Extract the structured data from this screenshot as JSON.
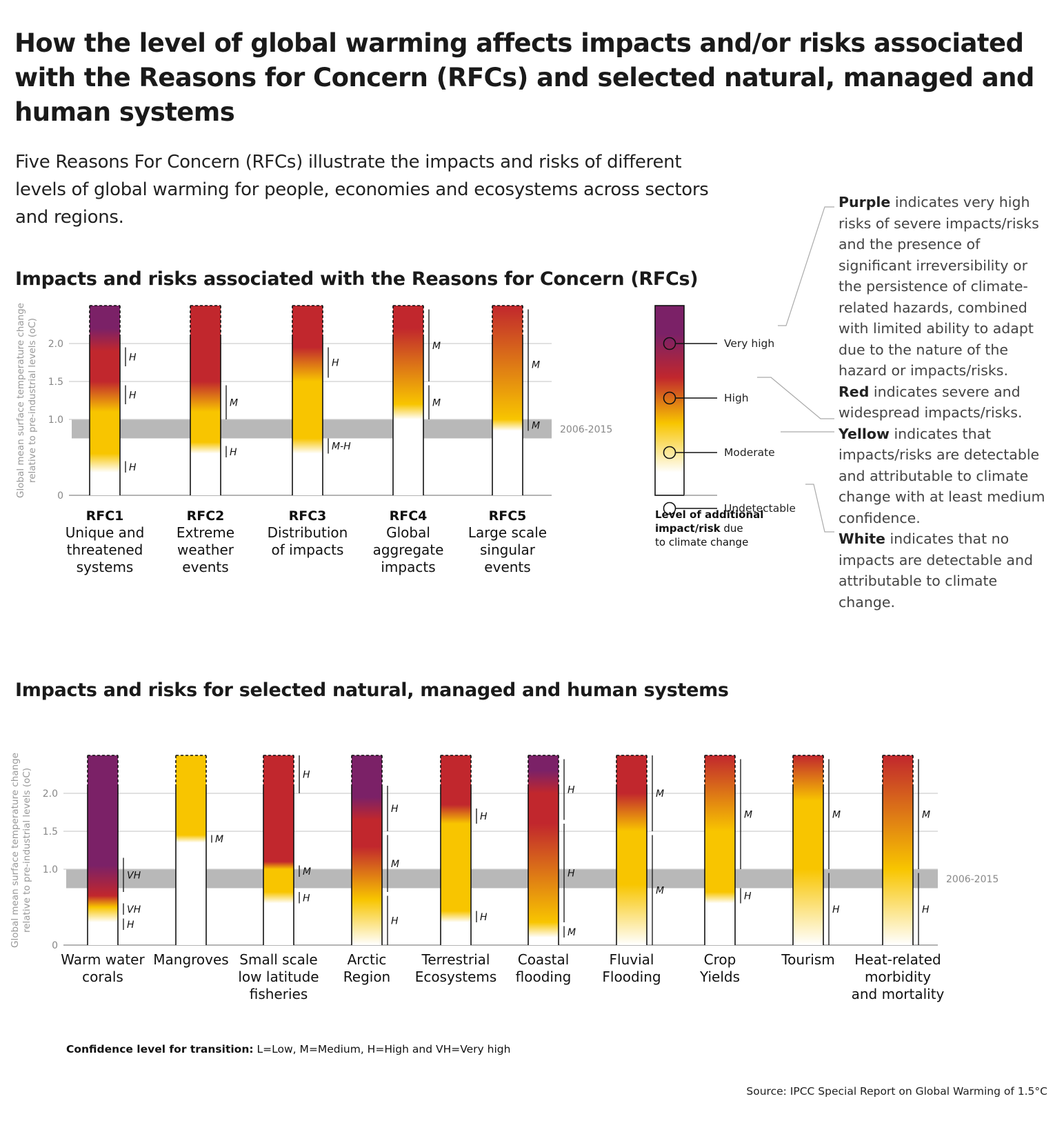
{
  "title": "How the level of global warming affects impacts and/or risks associated with the Reasons for Concern (RFCs) and selected natural, managed and human systems",
  "intro": "Five Reasons For Concern (RFCs) illustrate the impacts and risks of different levels of global warming for people, economies and ecosystems across sectors and regions.",
  "sections": {
    "rfc_heading": "Impacts and risks associated with the Reasons for Concern (RFCs)",
    "systems_heading": "Impacts and risks for selected natural, managed and human systems"
  },
  "legend": {
    "levels": [
      "Very high",
      "High",
      "Moderate",
      "Undetectable"
    ],
    "title": [
      "Level of additional",
      "impact/risk",
      "due",
      "to climate change"
    ],
    "colors": {
      "very_high": "#7b2167",
      "high": "#c1272d",
      "moderate": "#f8c500",
      "undetectable": "#ffffff"
    }
  },
  "notes": [
    {
      "key": "Purple",
      "text": " indicates very high risks of severe impacts/risks and the presence of significant irreversibility or the persistence of climate-related hazards, combined with limited ability to adapt due to the nature of the hazard or impacts/risks."
    },
    {
      "key": "Red",
      "text": " indicates severe and widespread impacts/risks."
    },
    {
      "key": "Yellow",
      "text": " indicates that impacts/risks are detectable and attributable to climate change with at least medium confidence."
    },
    {
      "key": "White",
      "text": " indicates that no impacts are detectable and attributable to climate change."
    }
  ],
  "confidence_note": {
    "label": "Confidence level  for transition:",
    "text": " L=Low, M=Medium, H=High and VH=Very high"
  },
  "source": "Source: IPCC Special Report on Global Warming of 1.5°C",
  "chart_data": [
    {
      "type": "heatmap",
      "title": "Impacts and risks associated with the Reasons for Concern (RFCs)",
      "ylabel": [
        "Global mean surface temperature change",
        "relative to pre-industrial levels (oC)"
      ],
      "yticks": [
        0,
        1.0,
        1.5,
        2.0
      ],
      "ylim": [
        0,
        2.5
      ],
      "reference_band": {
        "label": "2006-2015",
        "range": [
          0.75,
          1.0
        ]
      },
      "categories": [
        {
          "code": "RFC1",
          "label": [
            "Unique and",
            "threatened",
            "systems"
          ],
          "stops": [
            [
              0.3,
              "u"
            ],
            [
              0.55,
              "m"
            ],
            [
              1.1,
              "m"
            ],
            [
              1.5,
              "h"
            ],
            [
              1.9,
              "h"
            ],
            [
              2.2,
              "v"
            ]
          ],
          "confidence": [
            {
              "range": [
                0.3,
                0.45
              ],
              "text": "H"
            },
            {
              "range": [
                1.2,
                1.45
              ],
              "text": "H"
            },
            {
              "range": [
                1.7,
                1.95
              ],
              "text": "H"
            }
          ]
        },
        {
          "code": "RFC2",
          "label": [
            "Extreme",
            "weather",
            "events"
          ],
          "stops": [
            [
              0.55,
              "u"
            ],
            [
              0.7,
              "m"
            ],
            [
              1.1,
              "m"
            ],
            [
              1.5,
              "h"
            ]
          ],
          "confidence": [
            {
              "range": [
                0.5,
                0.65
              ],
              "text": "H"
            },
            {
              "range": [
                1.0,
                1.45
              ],
              "text": "M"
            }
          ]
        },
        {
          "code": "RFC3",
          "label": [
            "Distribution",
            "of impacts"
          ],
          "stops": [
            [
              0.55,
              "u"
            ],
            [
              0.75,
              "m"
            ],
            [
              1.5,
              "m"
            ],
            [
              1.95,
              "h"
            ]
          ],
          "confidence": [
            {
              "range": [
                0.55,
                0.75
              ],
              "text": "M-H"
            },
            {
              "range": [
                1.55,
                1.95
              ],
              "text": "H"
            }
          ]
        },
        {
          "code": "RFC4",
          "label": [
            "Global",
            "aggregate",
            "impacts"
          ],
          "stops": [
            [
              1.0,
              "u"
            ],
            [
              1.2,
              "m"
            ],
            [
              2.2,
              "h"
            ]
          ],
          "confidence": [
            {
              "range": [
                1.0,
                1.45
              ],
              "text": "M"
            },
            {
              "range": [
                1.5,
                2.45
              ],
              "text": "M"
            }
          ]
        },
        {
          "code": "RFC5",
          "label": [
            "Large scale",
            "singular",
            "events"
          ],
          "stops": [
            [
              0.85,
              "u"
            ],
            [
              1.0,
              "m"
            ],
            [
              2.5,
              "h"
            ]
          ],
          "confidence": [
            {
              "range": [
                0.85,
                1.0
              ],
              "text": "M"
            },
            {
              "range": [
                1.0,
                2.45
              ],
              "text": "M"
            }
          ]
        }
      ]
    },
    {
      "type": "heatmap",
      "title": "Impacts and risks for selected natural, managed and human systems",
      "ylabel": [
        "Global mean surface temperature change",
        "relative to pre-industrial levels (oC)"
      ],
      "yticks": [
        0,
        1.0,
        1.5,
        2.0
      ],
      "ylim": [
        0,
        2.5
      ],
      "reference_band": {
        "label": "2006-2015",
        "range": [
          0.75,
          1.0
        ]
      },
      "categories": [
        {
          "label": [
            "Warm water",
            "corals"
          ],
          "stops": [
            [
              0.3,
              "u"
            ],
            [
              0.5,
              "m"
            ],
            [
              0.65,
              "h"
            ],
            [
              1.05,
              "v"
            ]
          ],
          "confidence": [
            {
              "range": [
                0.2,
                0.35
              ],
              "text": "H"
            },
            {
              "range": [
                0.4,
                0.55
              ],
              "text": "VH"
            },
            {
              "range": [
                0.7,
                1.15
              ],
              "text": "VH"
            }
          ]
        },
        {
          "label": [
            "Mangroves"
          ],
          "stops": [
            [
              1.35,
              "u"
            ],
            [
              1.45,
              "m"
            ]
          ],
          "confidence": [
            {
              "range": [
                1.35,
                1.45
              ],
              "text": "M"
            }
          ]
        },
        {
          "label": [
            "Small scale",
            "low latitude",
            "fisheries"
          ],
          "stops": [
            [
              0.55,
              "u"
            ],
            [
              0.7,
              "m"
            ],
            [
              1.0,
              "m"
            ],
            [
              1.1,
              "h"
            ]
          ],
          "confidence": [
            {
              "range": [
                0.55,
                0.7
              ],
              "text": "H"
            },
            {
              "range": [
                0.9,
                1.05
              ],
              "text": "M"
            },
            {
              "range": [
                2.0,
                2.5
              ],
              "text": "H"
            }
          ]
        },
        {
          "label": [
            "Arctic",
            "Region"
          ],
          "stops": [
            [
              0.0,
              "u"
            ],
            [
              0.6,
              "m"
            ],
            [
              1.3,
              "h"
            ],
            [
              1.65,
              "h"
            ],
            [
              1.95,
              "v"
            ]
          ],
          "confidence": [
            {
              "range": [
                0.0,
                0.65
              ],
              "text": "H"
            },
            {
              "range": [
                0.7,
                1.45
              ],
              "text": "M"
            },
            {
              "range": [
                1.5,
                2.1
              ],
              "text": "H"
            }
          ]
        },
        {
          "label": [
            "Terrestrial",
            "Ecosystems"
          ],
          "stops": [
            [
              0.3,
              "u"
            ],
            [
              0.45,
              "m"
            ],
            [
              1.6,
              "m"
            ],
            [
              1.85,
              "h"
            ]
          ],
          "confidence": [
            {
              "range": [
                0.3,
                0.45
              ],
              "text": "H"
            },
            {
              "range": [
                1.6,
                1.8
              ],
              "text": "H"
            }
          ]
        },
        {
          "label": [
            "Coastal",
            "flooding"
          ],
          "stops": [
            [
              0.1,
              "u"
            ],
            [
              0.3,
              "m"
            ],
            [
              1.6,
              "h"
            ],
            [
              2.0,
              "h"
            ],
            [
              2.3,
              "v"
            ]
          ],
          "confidence": [
            {
              "range": [
                0.1,
                0.25
              ],
              "text": "M"
            },
            {
              "range": [
                0.3,
                1.6
              ],
              "text": "H"
            },
            {
              "range": [
                1.65,
                2.45
              ],
              "text": "H"
            }
          ]
        },
        {
          "label": [
            "Fluvial",
            "Flooding"
          ],
          "stops": [
            [
              0.0,
              "u"
            ],
            [
              0.8,
              "m"
            ],
            [
              1.5,
              "m"
            ],
            [
              2.0,
              "h"
            ]
          ],
          "confidence": [
            {
              "range": [
                0.0,
                1.45
              ],
              "text": "M"
            },
            {
              "range": [
                1.5,
                2.5
              ],
              "text": "M"
            }
          ]
        },
        {
          "label": [
            "Crop",
            "Yields"
          ],
          "stops": [
            [
              0.55,
              "u"
            ],
            [
              0.7,
              "m"
            ],
            [
              1.5,
              "m"
            ],
            [
              2.5,
              "h"
            ]
          ],
          "confidence": [
            {
              "range": [
                0.55,
                0.75
              ],
              "text": "H"
            },
            {
              "range": [
                1.0,
                2.45
              ],
              "text": "M"
            }
          ]
        },
        {
          "label": [
            "Tourism"
          ],
          "stops": [
            [
              0.0,
              "u"
            ],
            [
              1.0,
              "m"
            ],
            [
              1.9,
              "m"
            ],
            [
              2.5,
              "h"
            ]
          ],
          "confidence": [
            {
              "range": [
                0.0,
                0.95
              ],
              "text": "H"
            },
            {
              "range": [
                1.0,
                2.45
              ],
              "text": "M"
            }
          ]
        },
        {
          "label": [
            "Heat-related",
            "morbidity",
            "and mortality"
          ],
          "stops": [
            [
              0.0,
              "u"
            ],
            [
              1.0,
              "m"
            ],
            [
              2.5,
              "h"
            ]
          ],
          "confidence": [
            {
              "range": [
                0.0,
                0.95
              ],
              "text": "H"
            },
            {
              "range": [
                1.0,
                2.45
              ],
              "text": "M"
            }
          ]
        }
      ]
    }
  ]
}
